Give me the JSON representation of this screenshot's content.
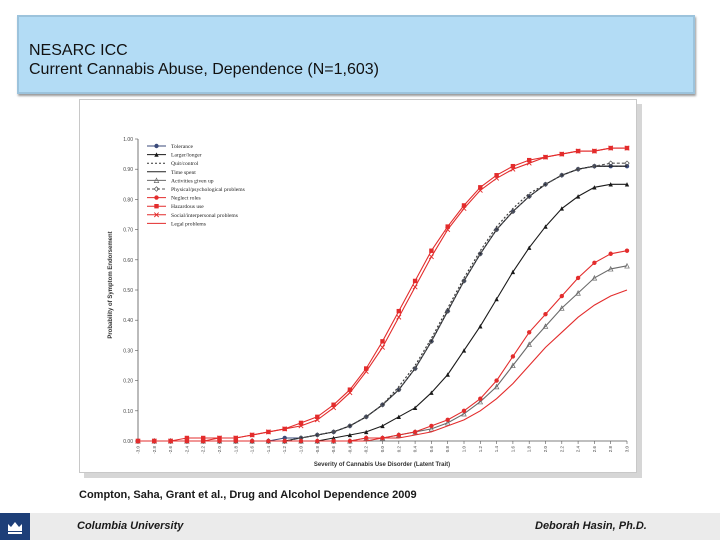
{
  "header": {
    "line1": "NESARC ICC",
    "line2": "Current Cannabis Abuse, Dependence (N=1,603)"
  },
  "citation": "Compton, Saha, Grant et al., Drug and Alcohol Dependence 2009",
  "footer": {
    "left": "Columbia University",
    "right": "Deborah   Hasin, Ph.D."
  },
  "logo_icon": "crown-icon",
  "colors": {
    "title_bg": "#b3dcf5",
    "series_red": "#e32c2c",
    "series_dark": "#2b2b2b",
    "series_gray": "#8c8c8c"
  },
  "chart_data": {
    "type": "line",
    "title": "",
    "xlabel": "Severity of Cannabis Use Disorder (Latent Trait)",
    "ylabel": "Probability of Symptom Endorsement",
    "xlim": [
      -3.0,
      3.0
    ],
    "ylim": [
      0.0,
      1.0
    ],
    "x_ticks": [
      -3.0,
      -2.8,
      -2.6,
      -2.4,
      -2.2,
      -2.0,
      -1.8,
      -1.6,
      -1.4,
      -1.2,
      -1.0,
      -0.8,
      -0.6,
      -0.4,
      -0.2,
      0.0,
      0.2,
      0.4,
      0.6,
      0.8,
      1.0,
      1.2,
      1.4,
      1.6,
      1.8,
      2.0,
      2.2,
      2.4,
      2.6,
      2.8,
      3.0
    ],
    "y_ticks": [
      0.0,
      0.1,
      0.2,
      0.3,
      0.4,
      0.5,
      0.6,
      0.7,
      0.8,
      0.9,
      1.0
    ],
    "grid": false,
    "legend_position": "top-left",
    "x": [
      -3.0,
      -2.8,
      -2.6,
      -2.4,
      -2.2,
      -2.0,
      -1.8,
      -1.6,
      -1.4,
      -1.2,
      -1.0,
      -0.8,
      -0.6,
      -0.4,
      -0.2,
      0.0,
      0.2,
      0.4,
      0.6,
      0.8,
      1.0,
      1.2,
      1.4,
      1.6,
      1.8,
      2.0,
      2.2,
      2.4,
      2.6,
      2.8,
      3.0
    ],
    "series": [
      {
        "name": "Tolerance",
        "color": "#3a4a7a",
        "marker": "circle",
        "dash": "",
        "values": [
          0.0,
          0.0,
          0.0,
          0.0,
          0.0,
          0.0,
          0.0,
          0.0,
          0.0,
          0.01,
          0.01,
          0.02,
          0.03,
          0.05,
          0.08,
          0.12,
          0.17,
          0.24,
          0.33,
          0.43,
          0.53,
          0.62,
          0.7,
          0.76,
          0.81,
          0.85,
          0.88,
          0.9,
          0.91,
          0.91,
          0.91
        ]
      },
      {
        "name": "Larger/longer",
        "color": "#1a1a1a",
        "marker": "triangle",
        "dash": "",
        "values": [
          0.0,
          0.0,
          0.0,
          0.0,
          0.0,
          0.0,
          0.0,
          0.0,
          0.0,
          0.0,
          0.0,
          0.0,
          0.01,
          0.02,
          0.03,
          0.05,
          0.08,
          0.11,
          0.16,
          0.22,
          0.3,
          0.38,
          0.47,
          0.56,
          0.64,
          0.71,
          0.77,
          0.81,
          0.84,
          0.85,
          0.85
        ]
      },
      {
        "name": "Quit/control",
        "color": "#333333",
        "marker": "none",
        "dash": "2,2",
        "values": [
          0.0,
          0.0,
          0.0,
          0.0,
          0.0,
          0.0,
          0.0,
          0.0,
          0.0,
          0.0,
          0.01,
          0.02,
          0.03,
          0.05,
          0.08,
          0.12,
          0.18,
          0.25,
          0.34,
          0.44,
          0.54,
          0.63,
          0.71,
          0.77,
          0.82,
          0.85,
          0.88,
          0.9,
          0.91,
          0.91,
          0.91
        ]
      },
      {
        "name": "Time spent",
        "color": "#222222",
        "marker": "none",
        "dash": "",
        "values": [
          0.0,
          0.0,
          0.0,
          0.0,
          0.0,
          0.0,
          0.0,
          0.0,
          0.0,
          0.0,
          0.01,
          0.02,
          0.03,
          0.05,
          0.08,
          0.12,
          0.17,
          0.24,
          0.33,
          0.43,
          0.53,
          0.62,
          0.7,
          0.76,
          0.81,
          0.85,
          0.88,
          0.9,
          0.91,
          0.91,
          0.91
        ]
      },
      {
        "name": "Activities given up",
        "color": "#6a6a6a",
        "marker": "triangle-open",
        "dash": "",
        "values": [
          0.0,
          0.0,
          0.0,
          0.0,
          0.0,
          0.0,
          0.0,
          0.0,
          0.0,
          0.0,
          0.0,
          0.0,
          0.0,
          0.0,
          0.01,
          0.01,
          0.02,
          0.03,
          0.04,
          0.06,
          0.09,
          0.13,
          0.18,
          0.25,
          0.32,
          0.38,
          0.44,
          0.49,
          0.54,
          0.57,
          0.58
        ]
      },
      {
        "name": "Physical/psychological problems",
        "color": "#555555",
        "marker": "diamond-open",
        "dash": "3,2",
        "values": [
          0.0,
          0.0,
          0.0,
          0.0,
          0.0,
          0.0,
          0.0,
          0.0,
          0.0,
          0.0,
          0.01,
          0.02,
          0.03,
          0.05,
          0.08,
          0.12,
          0.17,
          0.24,
          0.33,
          0.43,
          0.53,
          0.62,
          0.7,
          0.76,
          0.81,
          0.85,
          0.88,
          0.9,
          0.91,
          0.92,
          0.92
        ]
      },
      {
        "name": "Neglect roles",
        "color": "#e32c2c",
        "marker": "circle",
        "dash": "",
        "values": [
          0.0,
          0.0,
          0.0,
          0.0,
          0.0,
          0.0,
          0.0,
          0.0,
          0.0,
          0.0,
          0.0,
          0.0,
          0.0,
          0.0,
          0.01,
          0.01,
          0.02,
          0.03,
          0.05,
          0.07,
          0.1,
          0.14,
          0.2,
          0.28,
          0.36,
          0.42,
          0.48,
          0.54,
          0.59,
          0.62,
          0.63
        ]
      },
      {
        "name": "Hazardous use",
        "color": "#e32c2c",
        "marker": "square",
        "dash": "",
        "values": [
          0.0,
          0.0,
          0.0,
          0.01,
          0.01,
          0.01,
          0.01,
          0.02,
          0.03,
          0.04,
          0.06,
          0.08,
          0.12,
          0.17,
          0.24,
          0.33,
          0.43,
          0.53,
          0.63,
          0.71,
          0.78,
          0.84,
          0.88,
          0.91,
          0.93,
          0.94,
          0.95,
          0.96,
          0.96,
          0.97,
          0.97
        ]
      },
      {
        "name": "Social/interpersonal problems",
        "color": "#e32c2c",
        "marker": "x",
        "dash": "",
        "values": [
          0.0,
          0.0,
          0.0,
          0.0,
          0.0,
          0.01,
          0.01,
          0.02,
          0.03,
          0.04,
          0.05,
          0.07,
          0.11,
          0.16,
          0.23,
          0.31,
          0.41,
          0.51,
          0.61,
          0.7,
          0.77,
          0.83,
          0.87,
          0.9,
          0.92,
          0.94,
          0.95,
          0.96,
          0.96,
          0.97,
          0.97
        ]
      },
      {
        "name": "Legal problems",
        "color": "#e32c2c",
        "marker": "none",
        "dash": "",
        "values": [
          0.0,
          0.0,
          0.0,
          0.0,
          0.0,
          0.0,
          0.0,
          0.0,
          0.0,
          0.0,
          0.0,
          0.0,
          0.0,
          0.0,
          0.0,
          0.01,
          0.01,
          0.02,
          0.03,
          0.05,
          0.07,
          0.1,
          0.14,
          0.19,
          0.25,
          0.31,
          0.36,
          0.41,
          0.45,
          0.48,
          0.5
        ]
      }
    ]
  }
}
